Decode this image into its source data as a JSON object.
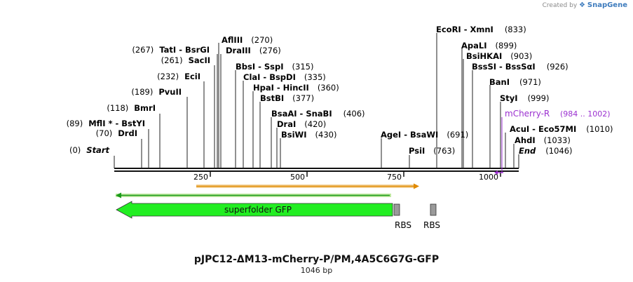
{
  "credit": {
    "prefix": "Created by",
    "brand": "SnapGene"
  },
  "title": "pJPC12-ΔM13-mCherry-P/PM,4A5C6G7G-GFP",
  "length_label": "1046 bp",
  "axis": {
    "ticks": [
      "250",
      "500",
      "750",
      "1000"
    ]
  },
  "colors": {
    "gfp": "#22ee22",
    "primer": "#9b30d0",
    "rbs": "#9a9a9a",
    "orf_orange": "#e08a00",
    "orf_green": "#1a9a1a"
  },
  "sites": [
    {
      "pos": "(0)",
      "name": "Start",
      "italic": true
    },
    {
      "pos": "(70)",
      "name": "DrdI"
    },
    {
      "pos": "(89)",
      "name": "MflI * - BstYI"
    },
    {
      "pos": "(118)",
      "name": "BmrI"
    },
    {
      "pos": "(189)",
      "name": "PvuII"
    },
    {
      "pos": "(232)",
      "name": "EciI"
    },
    {
      "pos": "(261)",
      "name": "SacII"
    },
    {
      "pos": "(267)",
      "name": "TatI - BsrGI"
    },
    {
      "pos": "(270)",
      "name": "AflIII"
    },
    {
      "pos": "(276)",
      "name": "DraIII"
    },
    {
      "pos": "(315)",
      "name": "BbsI - SspI"
    },
    {
      "pos": "(335)",
      "name": "ClaI - BspDI"
    },
    {
      "pos": "(360)",
      "name": "HpaI - HincII"
    },
    {
      "pos": "(377)",
      "name": "BstBI"
    },
    {
      "pos": "(406)",
      "name": "BsaAI - SnaBI"
    },
    {
      "pos": "(420)",
      "name": "DraI"
    },
    {
      "pos": "(430)",
      "name": "BsiWI"
    },
    {
      "pos": "(691)",
      "name": "AgeI - BsaWI"
    },
    {
      "pos": "(763)",
      "name": "PsiI"
    },
    {
      "pos": "(833)",
      "name": "EcoRI - XmnI"
    },
    {
      "pos": "(899)",
      "name": "ApaLI"
    },
    {
      "pos": "(903)",
      "name": "BsiHKAI"
    },
    {
      "pos": "(926)",
      "name": "BssSI - BssSαI"
    },
    {
      "pos": "(971)",
      "name": "BanI"
    },
    {
      "pos": "(999)",
      "name": "StyI"
    },
    {
      "pos": "(1010)",
      "name": "AcuI - Eco57MI"
    },
    {
      "pos": "(1033)",
      "name": "AhdI"
    },
    {
      "pos": "(1046)",
      "name": "End",
      "italic": true
    }
  ],
  "primer": {
    "name": "mCherry-R",
    "range": "(984 .. 1002)"
  },
  "features": {
    "gfp_label": "superfolder GFP",
    "rbs": [
      "RBS",
      "RBS"
    ]
  }
}
